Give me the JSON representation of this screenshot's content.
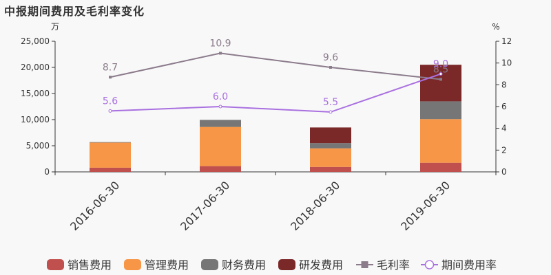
{
  "title": "中报期间费用及毛利率变化",
  "colors": {
    "sales": "#c0504d",
    "admin": "#f79646",
    "finance": "#767676",
    "rd": "#7b2828",
    "gross": "#8b7b8b",
    "period": "#a970e0"
  },
  "chart_data": {
    "type": "bar",
    "stacked": true,
    "categories": [
      "2016-06-30",
      "2017-06-30",
      "2018-06-30",
      "2019-06-30"
    ],
    "series": [
      {
        "name": "销售费用",
        "values": [
          800,
          1100,
          950,
          1750
        ]
      },
      {
        "name": "管理费用",
        "values": [
          4800,
          7500,
          3550,
          8350
        ]
      },
      {
        "name": "财务费用",
        "values": [
          100,
          1350,
          1000,
          3400
        ]
      },
      {
        "name": "研发费用",
        "values": [
          0,
          0,
          3000,
          7000
        ]
      }
    ],
    "line_series": [
      {
        "name": "毛利率",
        "values": [
          8.7,
          10.9,
          9.6,
          8.5
        ],
        "labels": [
          "8.7",
          "10.9",
          "9.6",
          "8.5"
        ]
      },
      {
        "name": "期间费用率",
        "values": [
          5.6,
          6.0,
          5.5,
          9.0
        ],
        "labels": [
          "5.6",
          "6.0",
          "5.5",
          "9.0"
        ]
      }
    ],
    "y_left": {
      "unit": "万",
      "min": 0,
      "max": 25000,
      "ticks": [
        "0",
        "5,000",
        "10,000",
        "15,000",
        "20,000",
        "25,000"
      ]
    },
    "y_right": {
      "unit": "%",
      "min": 0,
      "max": 12,
      "ticks": [
        "0",
        "2",
        "4",
        "6",
        "8",
        "10",
        "12"
      ]
    },
    "legend_position": "bottom",
    "grid": false
  }
}
